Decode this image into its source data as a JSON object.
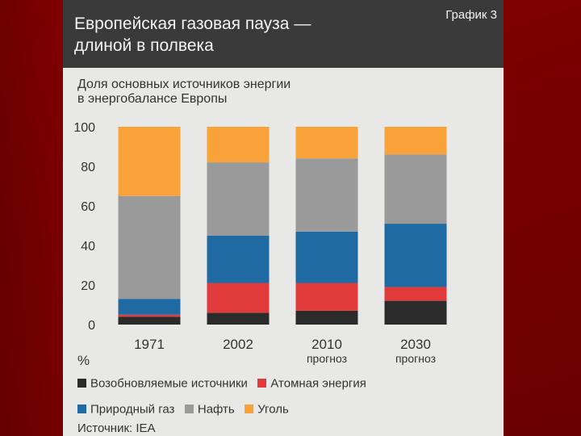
{
  "header": {
    "title": "Европейская газовая пауза —\nдлиной в полвека",
    "badge": "График 3"
  },
  "subtitle": "Доля основных источников энергии\nв энергобалансе Европы",
  "source": "Источник: IEA",
  "chart_data": {
    "type": "bar",
    "stacked": true,
    "title": "Доля основных источников энергии в энергобалансе Европы",
    "ylabel": "%",
    "ylim": [
      0,
      100
    ],
    "yticks": [
      0,
      20,
      40,
      60,
      80,
      100
    ],
    "categories": [
      "1971",
      "2002",
      "2010",
      "2030"
    ],
    "category_sublabels": [
      "",
      "",
      "прогноз",
      "прогноз"
    ],
    "series": [
      {
        "name": "Возобновляемые источники",
        "color": "#2b2b2b",
        "values": [
          4,
          6,
          7,
          12
        ]
      },
      {
        "name": "Атомная энергия",
        "color": "#e03a3a",
        "values": [
          1,
          15,
          14,
          7
        ]
      },
      {
        "name": "Природный газ",
        "color": "#1f6aa3",
        "values": [
          8,
          24,
          26,
          32
        ]
      },
      {
        "name": "Нафть",
        "color": "#9a9a9a",
        "values": [
          52,
          37,
          37,
          35
        ]
      },
      {
        "name": "Уголь",
        "color": "#f9a23a",
        "values": [
          35,
          18,
          16,
          14
        ]
      }
    ]
  }
}
